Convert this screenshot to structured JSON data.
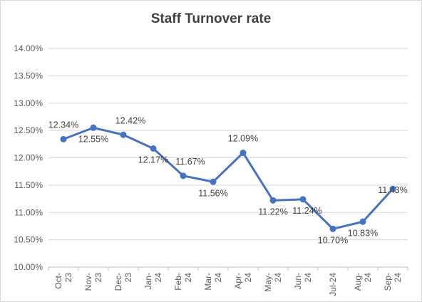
{
  "chart_data": {
    "type": "line",
    "title": "Staff Turnover rate",
    "xlabel": "",
    "ylabel": "",
    "categories": [
      [
        "Oct-",
        "23"
      ],
      [
        "Nov-",
        "23"
      ],
      [
        "Dec-",
        "23"
      ],
      [
        "Jan-",
        "24"
      ],
      [
        "Feb-",
        "24"
      ],
      [
        "Mar-",
        "24"
      ],
      [
        "Apr-",
        "24"
      ],
      [
        "May-",
        "24"
      ],
      [
        "Jun-",
        "24"
      ],
      [
        "Jul-24"
      ],
      [
        "Aug-",
        "24"
      ],
      [
        "Sep-",
        "24"
      ]
    ],
    "series": [
      {
        "values": [
          12.34,
          12.55,
          12.42,
          12.17,
          11.67,
          11.56,
          12.09,
          11.22,
          11.24,
          10.7,
          10.83,
          11.43
        ],
        "labels": [
          "12.34%",
          "12.55%",
          "12.42%",
          "12.17%",
          "11.67%",
          "11.56%",
          "12.09%",
          "11.22%",
          "11.24%",
          "10.70%",
          "10.83%",
          "11.43%"
        ],
        "color": "#4472c4"
      }
    ],
    "yticks": [
      "10.00%",
      "10.50%",
      "11.00%",
      "11.50%",
      "12.00%",
      "12.50%",
      "13.00%",
      "13.50%",
      "14.00%"
    ],
    "ylim": [
      10.0,
      14.0
    ],
    "grid": true,
    "legend": "none"
  }
}
